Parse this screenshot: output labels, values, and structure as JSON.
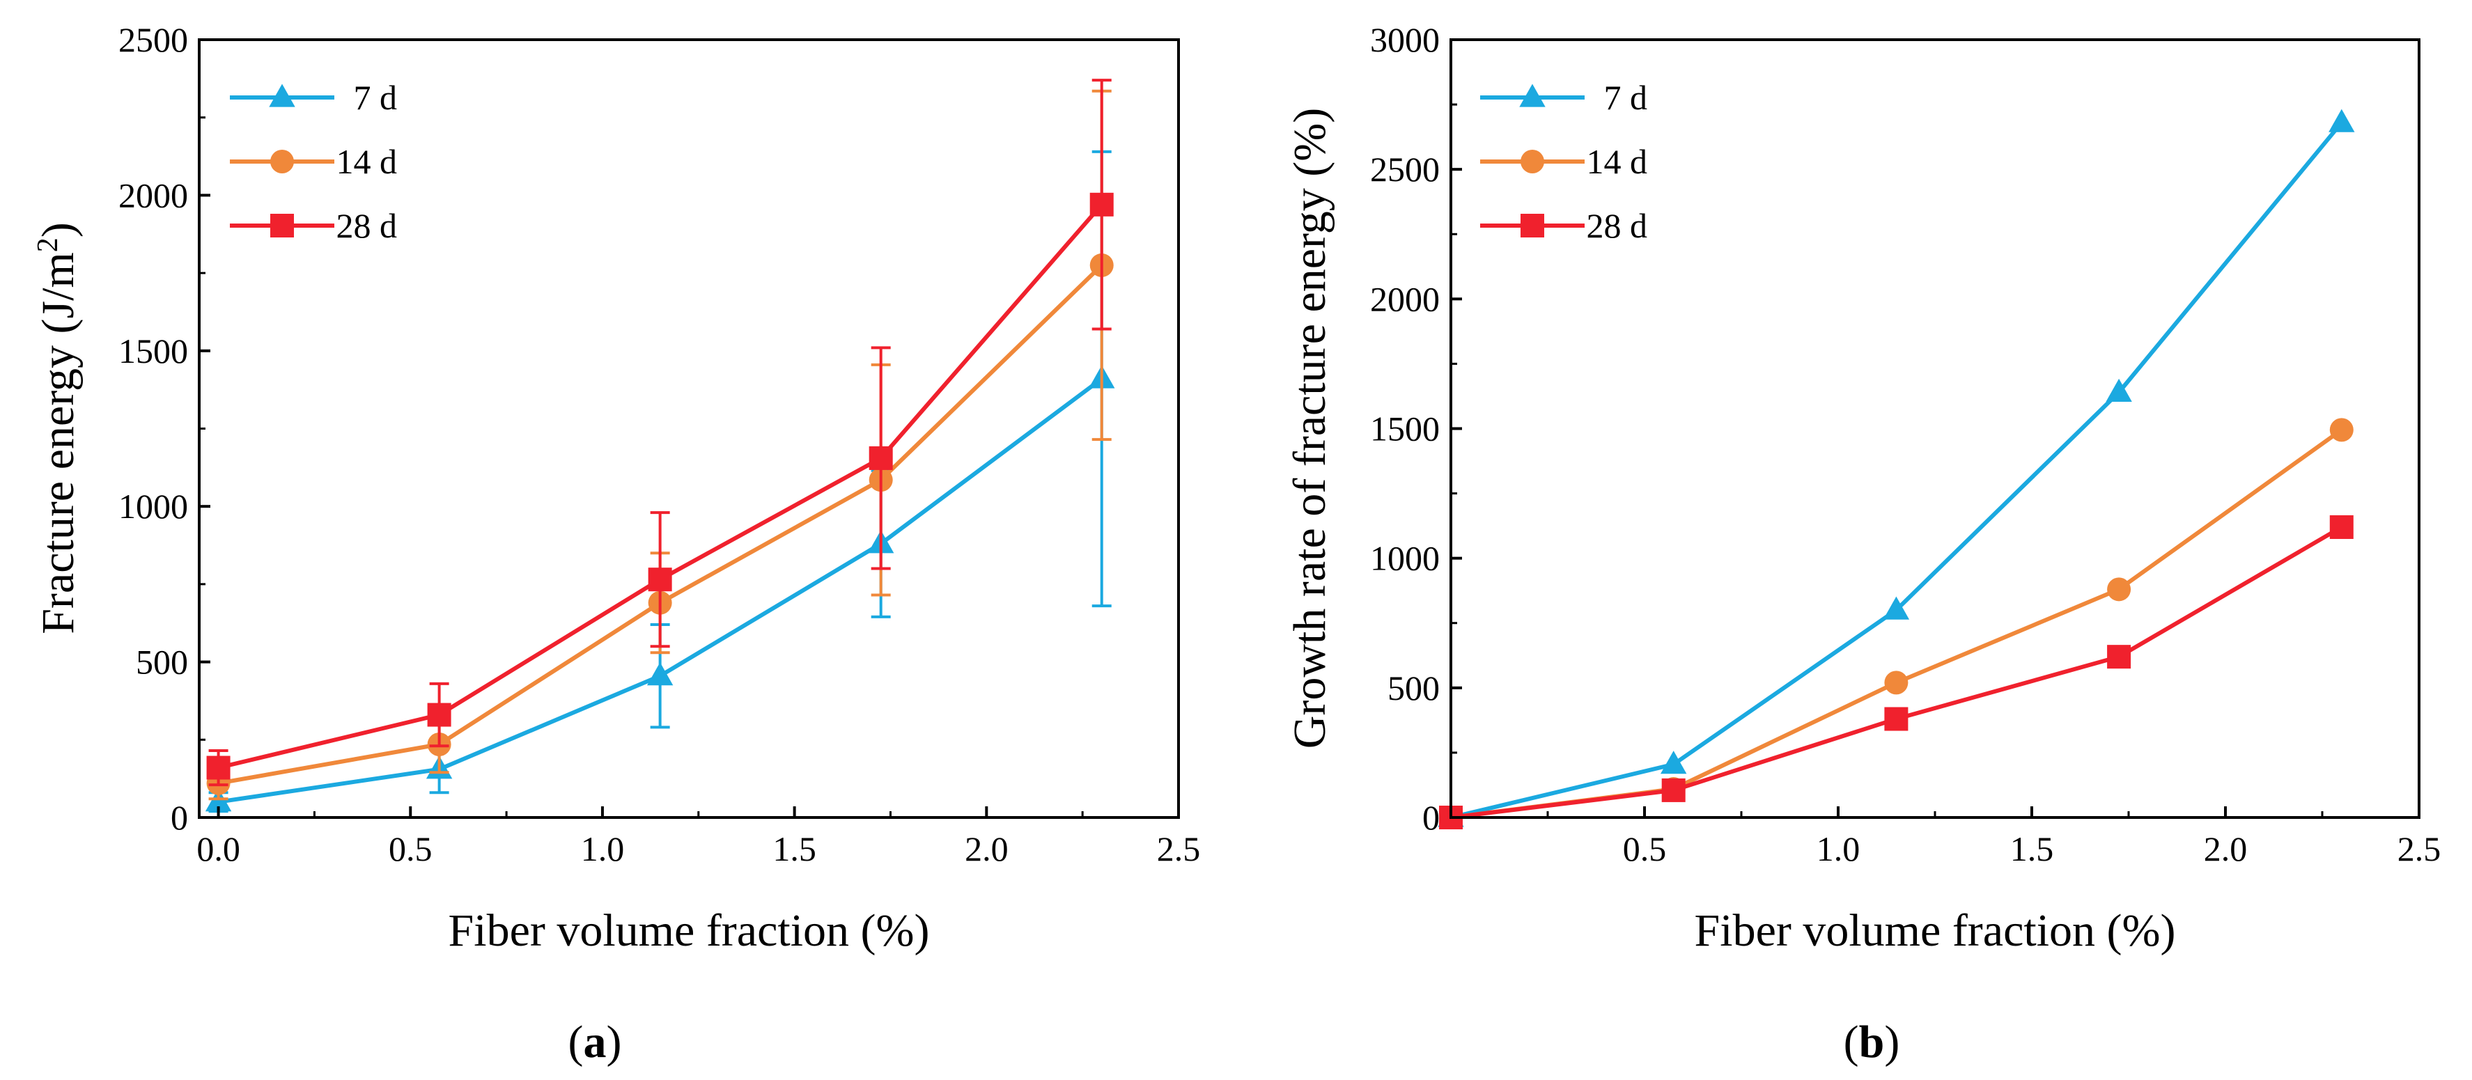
{
  "colors": {
    "7 d": "#1BA9E0",
    "14 d": "#F0883A",
    "28 d": "#F0212D"
  },
  "markers": {
    "7 d": "triangle",
    "14 d": "circle",
    "28 d": "square"
  },
  "captions": {
    "a": {
      "open": "(",
      "letter": "a",
      "close": ")"
    },
    "b": {
      "open": "(",
      "letter": "b",
      "close": ")"
    }
  },
  "chart_data": [
    {
      "id": "a",
      "type": "line",
      "xlabel": "Fiber volume fraction (%)",
      "ylabel": "Fracture energy (J/m²)",
      "ylabel_parts": {
        "main": "Fracture energy (J/m",
        "sup": "2",
        "end": ")"
      },
      "xlim": [
        -0.05,
        2.5
      ],
      "ylim": [
        0,
        2500
      ],
      "xticks": [
        0.0,
        0.5,
        1.0,
        1.5,
        2.0,
        2.5
      ],
      "xtick_labels": [
        "0.0",
        "0.5",
        "1.0",
        "1.5",
        "2.0",
        "2.5"
      ],
      "yticks": [
        0,
        500,
        1000,
        1500,
        2000,
        2500
      ],
      "ytick_labels": [
        "0",
        "500",
        "1000",
        "1500",
        "2000",
        "2500"
      ],
      "legend_position": "top-left",
      "x": [
        0,
        0.575,
        1.15,
        1.725,
        2.3
      ],
      "series": [
        {
          "name": "7 d",
          "values": [
            50,
            155,
            455,
            880,
            1410
          ],
          "error": [
            30,
            75,
            165,
            235,
            730
          ]
        },
        {
          "name": "14 d",
          "values": [
            110,
            235,
            690,
            1085,
            1775
          ],
          "error": [
            50,
            90,
            160,
            370,
            560
          ]
        },
        {
          "name": "28 d",
          "values": [
            160,
            330,
            765,
            1155,
            1970
          ],
          "error": [
            55,
            100,
            215,
            355,
            400
          ]
        }
      ]
    },
    {
      "id": "b",
      "type": "line",
      "xlabel": "Fiber volume fraction (%)",
      "ylabel": "Growth rate of fracture energy (%)",
      "xlim": [
        0,
        2.5
      ],
      "ylim": [
        0,
        3000
      ],
      "xticks": [
        0.5,
        1.0,
        1.5,
        2.0,
        2.5
      ],
      "xtick_labels": [
        "0.5",
        "1.0",
        "1.5",
        "2.0",
        "2.5"
      ],
      "yticks": [
        0,
        500,
        1000,
        1500,
        2000,
        2500,
        3000
      ],
      "ytick_labels": [
        "0",
        "500",
        "1000",
        "1500",
        "2000",
        "2500",
        "3000"
      ],
      "legend_position": "top-left",
      "x": [
        0,
        0.575,
        1.15,
        1.725,
        2.3
      ],
      "series": [
        {
          "name": "7 d",
          "values": [
            0,
            205,
            800,
            1640,
            2680
          ]
        },
        {
          "name": "14 d",
          "values": [
            0,
            110,
            520,
            880,
            1495
          ]
        },
        {
          "name": "28 d",
          "values": [
            0,
            105,
            380,
            620,
            1120
          ]
        }
      ]
    }
  ]
}
